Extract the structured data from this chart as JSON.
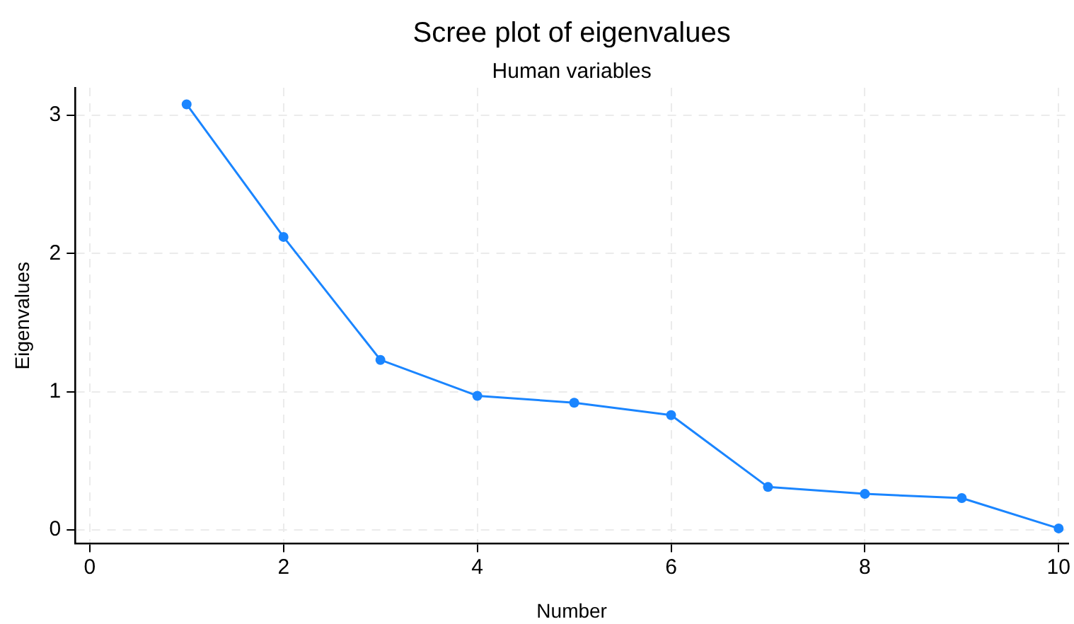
{
  "chart_data": {
    "type": "line",
    "title": "Scree plot of eigenvalues",
    "subtitle": "Human variables",
    "xlabel": "Number",
    "ylabel": "Eigenvalues",
    "x": [
      1,
      2,
      3,
      4,
      5,
      6,
      7,
      8,
      9,
      10
    ],
    "series": [
      {
        "color": "#1a85ff",
        "values": [
          3.08,
          2.12,
          1.23,
          0.97,
          0.92,
          0.83,
          0.31,
          0.26,
          0.23,
          0.01
        ]
      }
    ],
    "xlim": [
      -0.15,
      10.1
    ],
    "ylim": [
      -0.1,
      3.2
    ],
    "xticks": [
      0,
      2,
      4,
      6,
      8,
      10
    ],
    "yticks": [
      0,
      1,
      2,
      3
    ],
    "grid": true,
    "marker": "circle",
    "line_style": "solid"
  }
}
